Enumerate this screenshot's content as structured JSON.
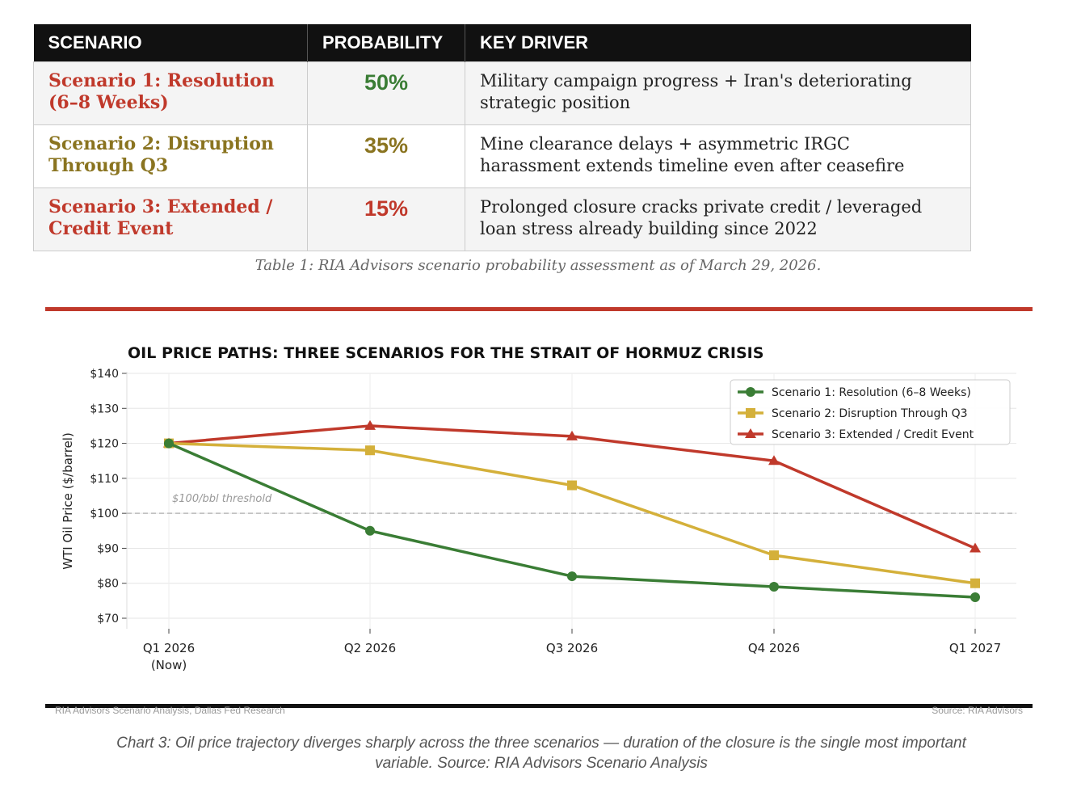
{
  "table": {
    "headers": [
      "SCENARIO",
      "PROBABILITY",
      "KEY DRIVER"
    ],
    "rows": [
      {
        "scenario_line1": "Scenario 1: Resolution",
        "scenario_line2": "(6–8 Weeks)",
        "probability": "50%",
        "driver_line1": "Military campaign progress + Iran's deteriorating",
        "driver_line2": "strategic position",
        "color": "#c0392b",
        "prob_color": "#3a7d35"
      },
      {
        "scenario_line1": "Scenario 2: Disruption",
        "scenario_line2": "Through Q3",
        "probability": "35%",
        "driver_line1": "Mine clearance delays + asymmetric IRGC",
        "driver_line2": "harassment extends timeline even after ceasefire",
        "color": "#8a7420",
        "prob_color": "#8a7420"
      },
      {
        "scenario_line1": "Scenario 3: Extended /",
        "scenario_line2": "Credit Event",
        "probability": "15%",
        "driver_line1": "Prolonged closure cracks private credit / leveraged",
        "driver_line2": "loan stress already building since 2022",
        "color": "#c0392b",
        "prob_color": "#c0392b"
      }
    ],
    "caption": "Table 1: RIA Advisors scenario probability assessment as of March 29, 2026."
  },
  "chart_data": {
    "type": "line",
    "title": "OIL PRICE PATHS: THREE SCENARIOS FOR THE STRAIT OF HORMUZ CRISIS",
    "xlabel": "",
    "ylabel": "WTI Oil Price ($/barrel)",
    "categories": [
      [
        "Q1 2026",
        "(Now)"
      ],
      [
        "Q2 2026"
      ],
      [
        "Q3 2026"
      ],
      [
        "Q4 2026"
      ],
      [
        "Q1 2027"
      ]
    ],
    "y_ticks": [
      "$70",
      "$80",
      "$90",
      "$100",
      "$110",
      "$120",
      "$130",
      "$140"
    ],
    "y_tick_values": [
      70,
      80,
      90,
      100,
      110,
      120,
      130,
      140
    ],
    "ylim": [
      67,
      140
    ],
    "grid": true,
    "legend_position": "top-right",
    "reference_line": {
      "value": 100,
      "label": "$100/bbl threshold"
    },
    "series": [
      {
        "name": "Scenario 1: Resolution (6–8 Weeks)",
        "color": "#3a7d35",
        "marker": "circle",
        "values": [
          120,
          95,
          82,
          79,
          76
        ]
      },
      {
        "name": "Scenario 2: Disruption Through Q3",
        "color": "#d4b03a",
        "marker": "square",
        "values": [
          120,
          118,
          108,
          88,
          80
        ]
      },
      {
        "name": "Scenario 3: Extended / Credit Event",
        "color": "#c0392b",
        "marker": "triangle",
        "values": [
          120,
          125,
          122,
          115,
          90
        ]
      }
    ]
  },
  "footer": {
    "left": "RIA Advisors Scenario Analysis, Dallas Fed Research",
    "right": "Source: RIA Advisors"
  },
  "chart_caption": {
    "line1": "Chart 3: Oil price trajectory diverges sharply across the three scenarios — duration of the closure is the single most important",
    "line2": "variable.  Source: RIA Advisors Scenario Analysis"
  }
}
